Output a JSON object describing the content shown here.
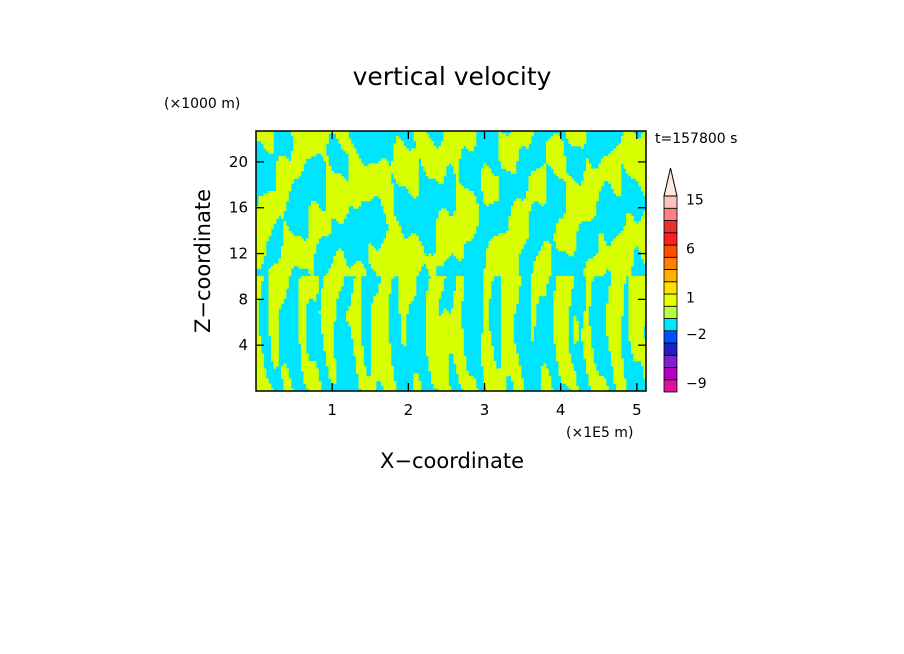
{
  "chart_data": {
    "type": "heatmap",
    "title": "vertical velocity",
    "xlabel": "X−coordinate",
    "ylabel": "Z−coordinate",
    "x_unit": "(×1E5 m)",
    "y_unit": "(×1000 m)",
    "time_label": "t=157800 s",
    "xlim": [
      0,
      5.12
    ],
    "ylim": [
      0,
      22.7
    ],
    "x_ticks": [
      1,
      2,
      3,
      4,
      5
    ],
    "y_ticks": [
      4,
      8,
      12,
      16,
      20
    ],
    "grid": false,
    "field_colors": {
      "negative": "#00e5ff",
      "positive": "#d8ff00"
    },
    "colorbar": {
      "placement": "right",
      "levels": [
        -9,
        -7,
        -5,
        -3,
        -2,
        -1,
        0,
        1,
        2,
        3,
        4,
        6,
        8,
        10,
        12,
        15,
        18
      ],
      "tick_labels": [
        {
          "value": -9,
          "label": "−9"
        },
        {
          "value": -2,
          "label": "−2"
        },
        {
          "value": 1,
          "label": "1"
        },
        {
          "value": 6,
          "label": "6"
        },
        {
          "value": 15,
          "label": "15"
        }
      ],
      "colors": [
        "#e0109e",
        "#b400c0",
        "#8020c8",
        "#2020c0",
        "#0050ff",
        "#00e5ff",
        "#b8ff40",
        "#e8ff00",
        "#ffe000",
        "#ffb000",
        "#ff8000",
        "#ff5000",
        "#ff2020",
        "#e83030",
        "#ff8080",
        "#ffc0c0"
      ],
      "extend_top_color": "#ffe8e0"
    }
  }
}
